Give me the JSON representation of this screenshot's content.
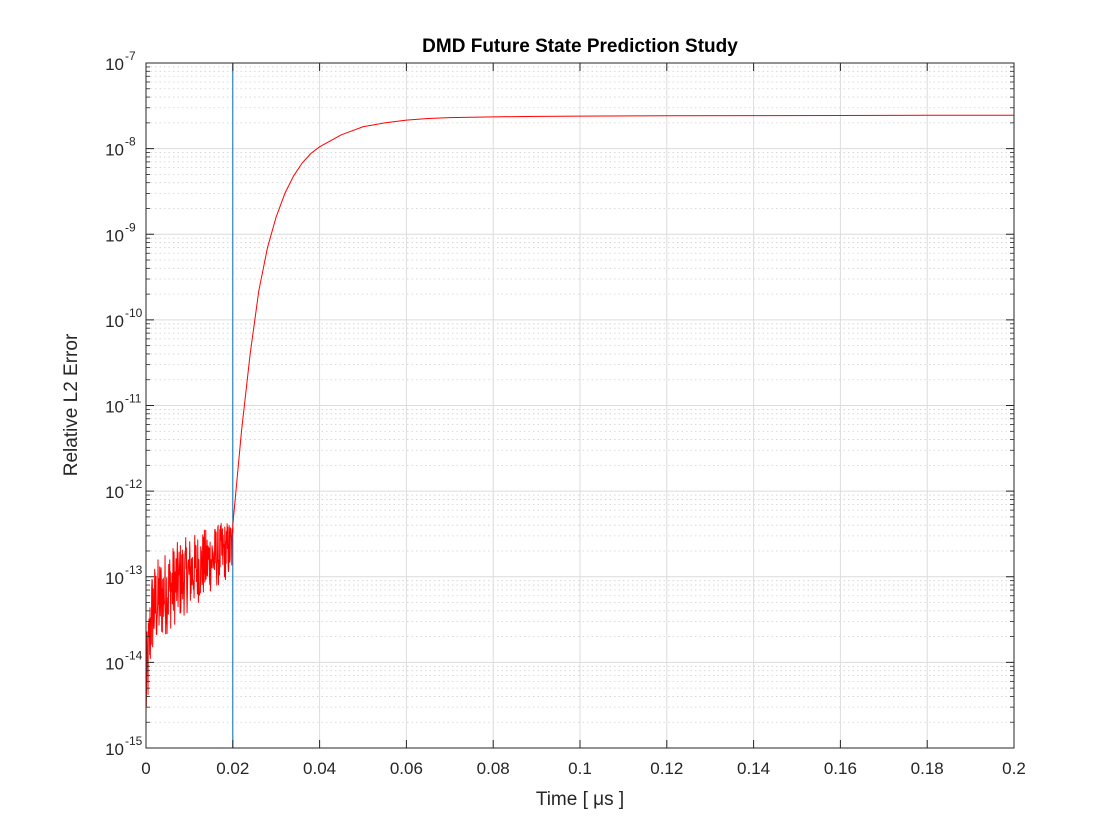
{
  "chart_data": {
    "type": "line",
    "title": "DMD Future State Prediction Study",
    "xlabel": "Time [ μs ]",
    "ylabel": "Relative L2 Error",
    "xlim": [
      0,
      0.2
    ],
    "ylim": [
      1e-15,
      1e-07
    ],
    "yscale": "log",
    "grid": true,
    "minor_grid": true,
    "x_ticks": [
      "0",
      "0.02",
      "0.04",
      "0.06",
      "0.08",
      "0.1",
      "0.12",
      "0.14",
      "0.16",
      "0.18",
      "0.2"
    ],
    "x_tick_values": [
      0,
      0.02,
      0.04,
      0.06,
      0.08,
      0.1,
      0.12,
      0.14,
      0.16,
      0.18,
      0.2
    ],
    "y_ticks": [
      {
        "base": "10",
        "exp": "-15"
      },
      {
        "base": "10",
        "exp": "-14"
      },
      {
        "base": "10",
        "exp": "-13"
      },
      {
        "base": "10",
        "exp": "-12"
      },
      {
        "base": "10",
        "exp": "-11"
      },
      {
        "base": "10",
        "exp": "-10"
      },
      {
        "base": "10",
        "exp": "-9"
      },
      {
        "base": "10",
        "exp": "-8"
      },
      {
        "base": "10",
        "exp": "-7"
      }
    ],
    "y_tick_values": [
      1e-15,
      1e-14,
      1e-13,
      1e-12,
      1e-11,
      1e-10,
      1e-09,
      1e-08,
      1e-07
    ],
    "vertical_line": {
      "x": 0.02,
      "color": "#0072BD"
    },
    "series": [
      {
        "color": "#FF0000",
        "noisy_segment": {
          "x_start": 0,
          "x_end": 0.02,
          "y_start": 5e-15,
          "y_center_end": 3e-13,
          "y_max": 5e-13
        },
        "x": [
          0.02,
          0.022,
          0.024,
          0.026,
          0.028,
          0.03,
          0.032,
          0.034,
          0.036,
          0.038,
          0.04,
          0.045,
          0.05,
          0.055,
          0.06,
          0.065,
          0.07,
          0.08,
          0.09,
          0.1,
          0.12,
          0.14,
          0.16,
          0.18,
          0.2
        ],
        "y": [
          4e-13,
          5e-12,
          4e-11,
          2.2e-10,
          7e-10,
          1.6e-09,
          3e-09,
          4.8e-09,
          6.8e-09,
          8.8e-09,
          1.05e-08,
          1.45e-08,
          1.8e-08,
          2e-08,
          2.15e-08,
          2.25e-08,
          2.3e-08,
          2.35e-08,
          2.38e-08,
          2.4e-08,
          2.42e-08,
          2.43e-08,
          2.44e-08,
          2.45e-08,
          2.45e-08
        ]
      }
    ]
  }
}
